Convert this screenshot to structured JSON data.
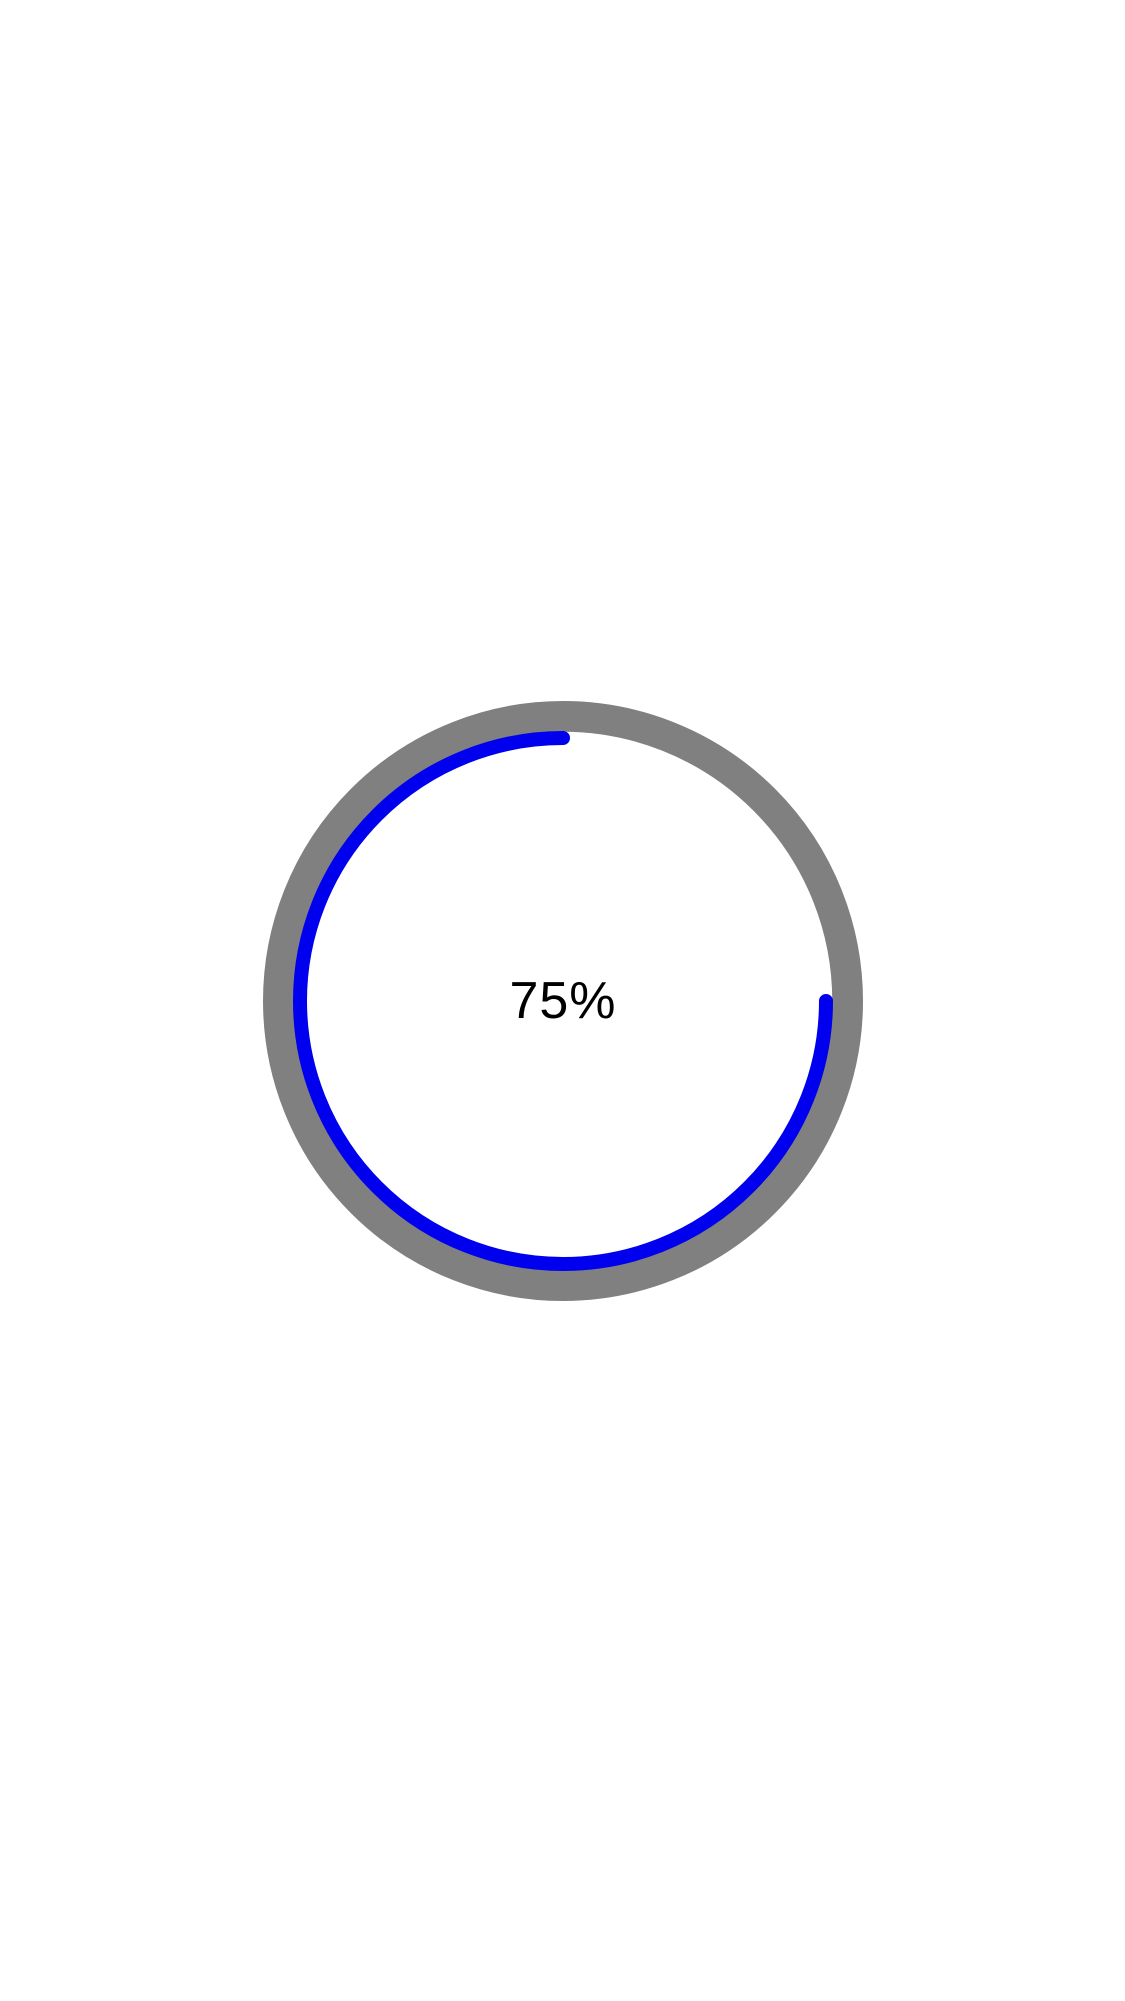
{
  "progress": {
    "value": 0.75,
    "label": "75%",
    "track_color": "#808080",
    "bar_color": "#0000ee"
  }
}
